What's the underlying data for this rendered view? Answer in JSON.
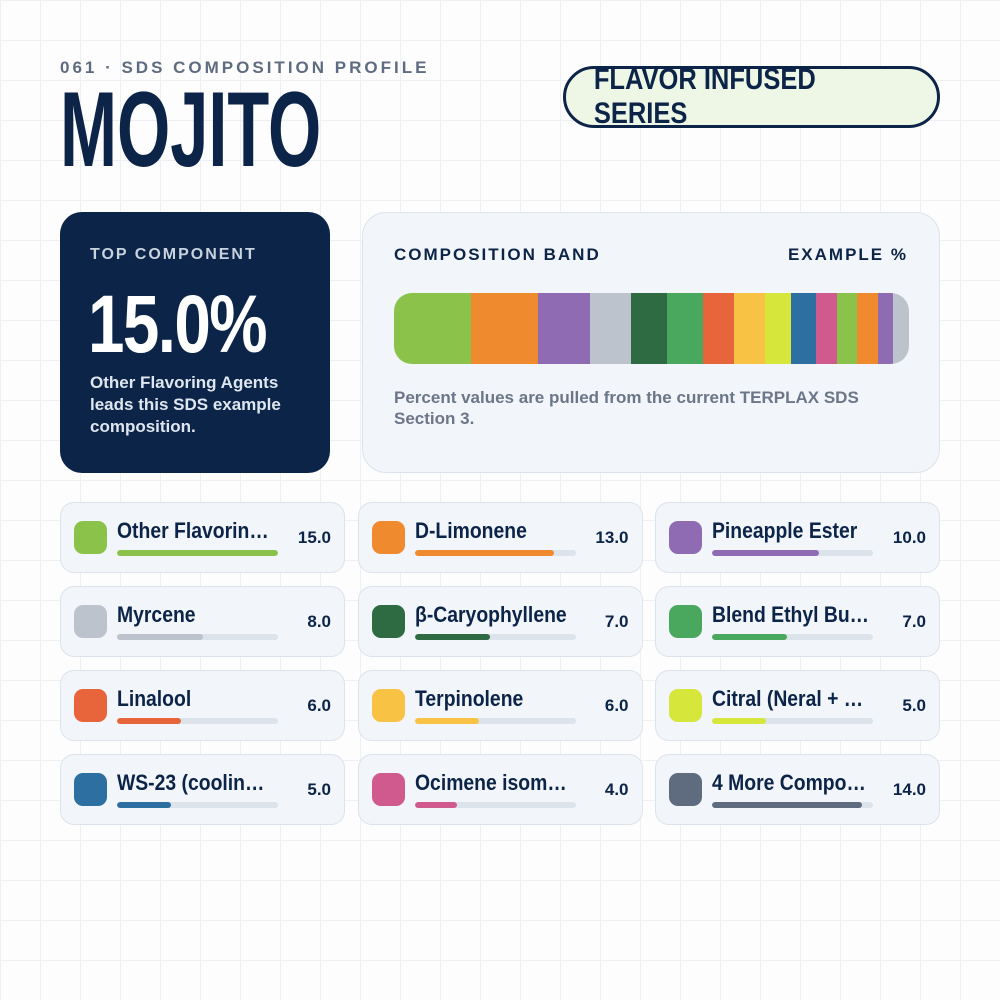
{
  "header": {
    "eyebrow": "061 · SDS COMPOSITION PROFILE",
    "title": "MOJITO",
    "badge": "FLAVOR INFUSED SERIES"
  },
  "top_component": {
    "label": "TOP COMPONENT",
    "value": "15.0%",
    "text": "Other Flavoring Agents leads this SDS example composition."
  },
  "band": {
    "title": "COMPOSITION BAND",
    "unit_label": "EXAMPLE %",
    "note": "Percent values are pulled from the current TERPLAX SDS Section 3.",
    "extra_values": [
      4,
      4,
      3,
      3
    ],
    "extra_colors": [
      "#8bc34a",
      "#f08a2e",
      "#8e6bb3",
      "#bcc3cc"
    ]
  },
  "components": {
    "names": [
      "Other Flavorin…",
      "D-Limonene",
      "Pineapple Ester",
      "Myrcene",
      "β-Caryophyllene",
      "Blend Ethyl Bu…",
      "Linalool",
      "Terpinolene",
      "Citral (Neral + …",
      "WS-23 (coolin…",
      "Ocimene isom…",
      "4 More Compo…"
    ],
    "values": [
      15,
      13,
      10,
      8,
      7,
      7,
      6,
      6,
      5,
      5,
      4,
      14
    ],
    "value_labels": [
      "15.0",
      "13.0",
      "10.0",
      "8.0",
      "7.0",
      "7.0",
      "6.0",
      "6.0",
      "5.0",
      "5.0",
      "4.0",
      "14.0"
    ],
    "colors": [
      "#8bc34a",
      "#f08a2e",
      "#8e6bb3",
      "#bcc3cc",
      "#2e6b43",
      "#4aa85e",
      "#e8643a",
      "#f8c244",
      "#d7e63a",
      "#2c6fa0",
      "#d05a8e",
      "#5f6b7f"
    ]
  }
}
